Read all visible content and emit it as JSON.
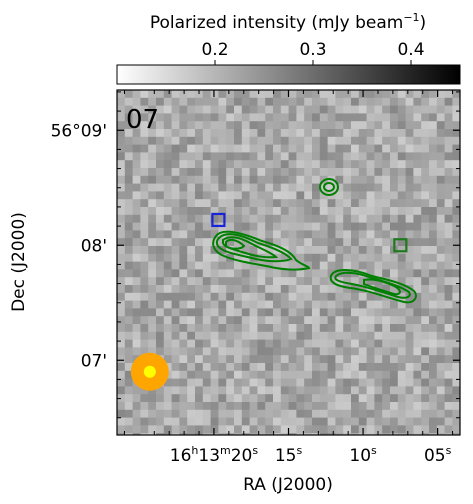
{
  "chart_data": {
    "type": "heatmap",
    "panel_label": "07",
    "colorbar": {
      "title": "Polarized intensity (mJy beam",
      "title_exponent": "−1",
      "title_close": ")",
      "range": [
        0.1,
        0.45
      ],
      "ticks": [
        {
          "value": 0.2,
          "label": "0.2"
        },
        {
          "value": 0.3,
          "label": "0.3"
        },
        {
          "value": 0.4,
          "label": "0.4"
        }
      ],
      "cmap": "gray_r"
    },
    "xaxis": {
      "label": "RA (J2000)",
      "range_sec": [
        26.5,
        3.5
      ],
      "ticks": [
        {
          "value": 20,
          "label": "16h13m20s"
        },
        {
          "value": 15,
          "label": "15s"
        },
        {
          "value": 10,
          "label": "10s"
        },
        {
          "value": 5,
          "label": "05s"
        }
      ]
    },
    "yaxis": {
      "label": "Dec (J2000)",
      "range_arcmin": [
        -0.65,
        2.35
      ],
      "ticks": [
        {
          "value": 2,
          "label": "56°09'"
        },
        {
          "value": 1,
          "label": "08'"
        },
        {
          "value": 0,
          "label": "07'"
        }
      ]
    },
    "beam": {
      "ra_sec": 24.3,
      "dec_arcmin": -0.1
    },
    "markers": [
      {
        "shape": "square",
        "color": "#1a24d8",
        "ra_sec": 19.7,
        "dec_arcmin": 1.22
      },
      {
        "shape": "square",
        "color": "#1e7a1e",
        "ra_sec": 7.5,
        "dec_arcmin": 1.0
      }
    ],
    "contour_color": "#008000",
    "colors": {
      "beam_outer": "#ffa500",
      "beam_inner": "#ffff00"
    }
  }
}
